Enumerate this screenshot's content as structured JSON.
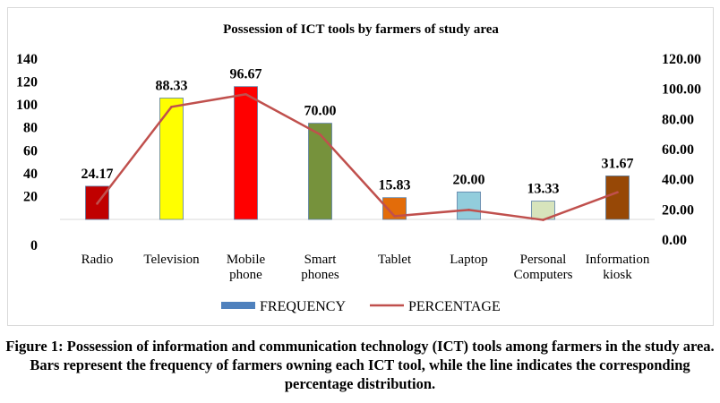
{
  "chart_data": {
    "type": "bar",
    "title": "Possession of ICT tools by farmers of study area",
    "categories": [
      [
        "Radio"
      ],
      [
        "Television"
      ],
      [
        "Mobile",
        "phone"
      ],
      [
        "Smart",
        "phones"
      ],
      [
        "Tablet"
      ],
      [
        "Laptop"
      ],
      [
        "Personal",
        "Computers"
      ],
      [
        "Information",
        "kiosk"
      ]
    ],
    "series": [
      {
        "name": "FREQUENCY",
        "axis": "left",
        "values": [
          29,
          106,
          116,
          84,
          19,
          24,
          16,
          38
        ],
        "colors": [
          "#c00000",
          "#ffff00",
          "#ff0000",
          "#76923c",
          "#e36c09",
          "#92cddc",
          "#d7e4bc",
          "#974806"
        ]
      },
      {
        "name": "PERCENTAGE",
        "axis": "right",
        "values": [
          24.17,
          88.33,
          96.67,
          70.0,
          15.83,
          20.0,
          13.33,
          31.67
        ],
        "data_labels": [
          "24.17",
          "88.33",
          "96.67",
          "70.00",
          "15.83",
          "20.00",
          "13.33",
          "31.67"
        ],
        "color": "#c0504d"
      }
    ],
    "left_axis": {
      "ticks": [
        "0",
        "20",
        "40",
        "60",
        "80",
        "100",
        "120",
        "140"
      ],
      "ylim": [
        0,
        140
      ]
    },
    "right_axis": {
      "ticks": [
        "0.00",
        "20.00",
        "40.00",
        "60.00",
        "80.00",
        "100.00",
        "120.00"
      ],
      "ylim": [
        0,
        120
      ]
    },
    "legend": {
      "position": "bottom",
      "items": [
        "FREQUENCY",
        "PERCENTAGE"
      ],
      "frequency_swatch": "#4f81bd"
    }
  },
  "caption": {
    "text": "Figure 1: Possession of information and communication technology (ICT) tools among farmers in the study area. Bars represent the frequency of farmers owning each ICT tool, while the line indicates the corresponding percentage distribution."
  }
}
